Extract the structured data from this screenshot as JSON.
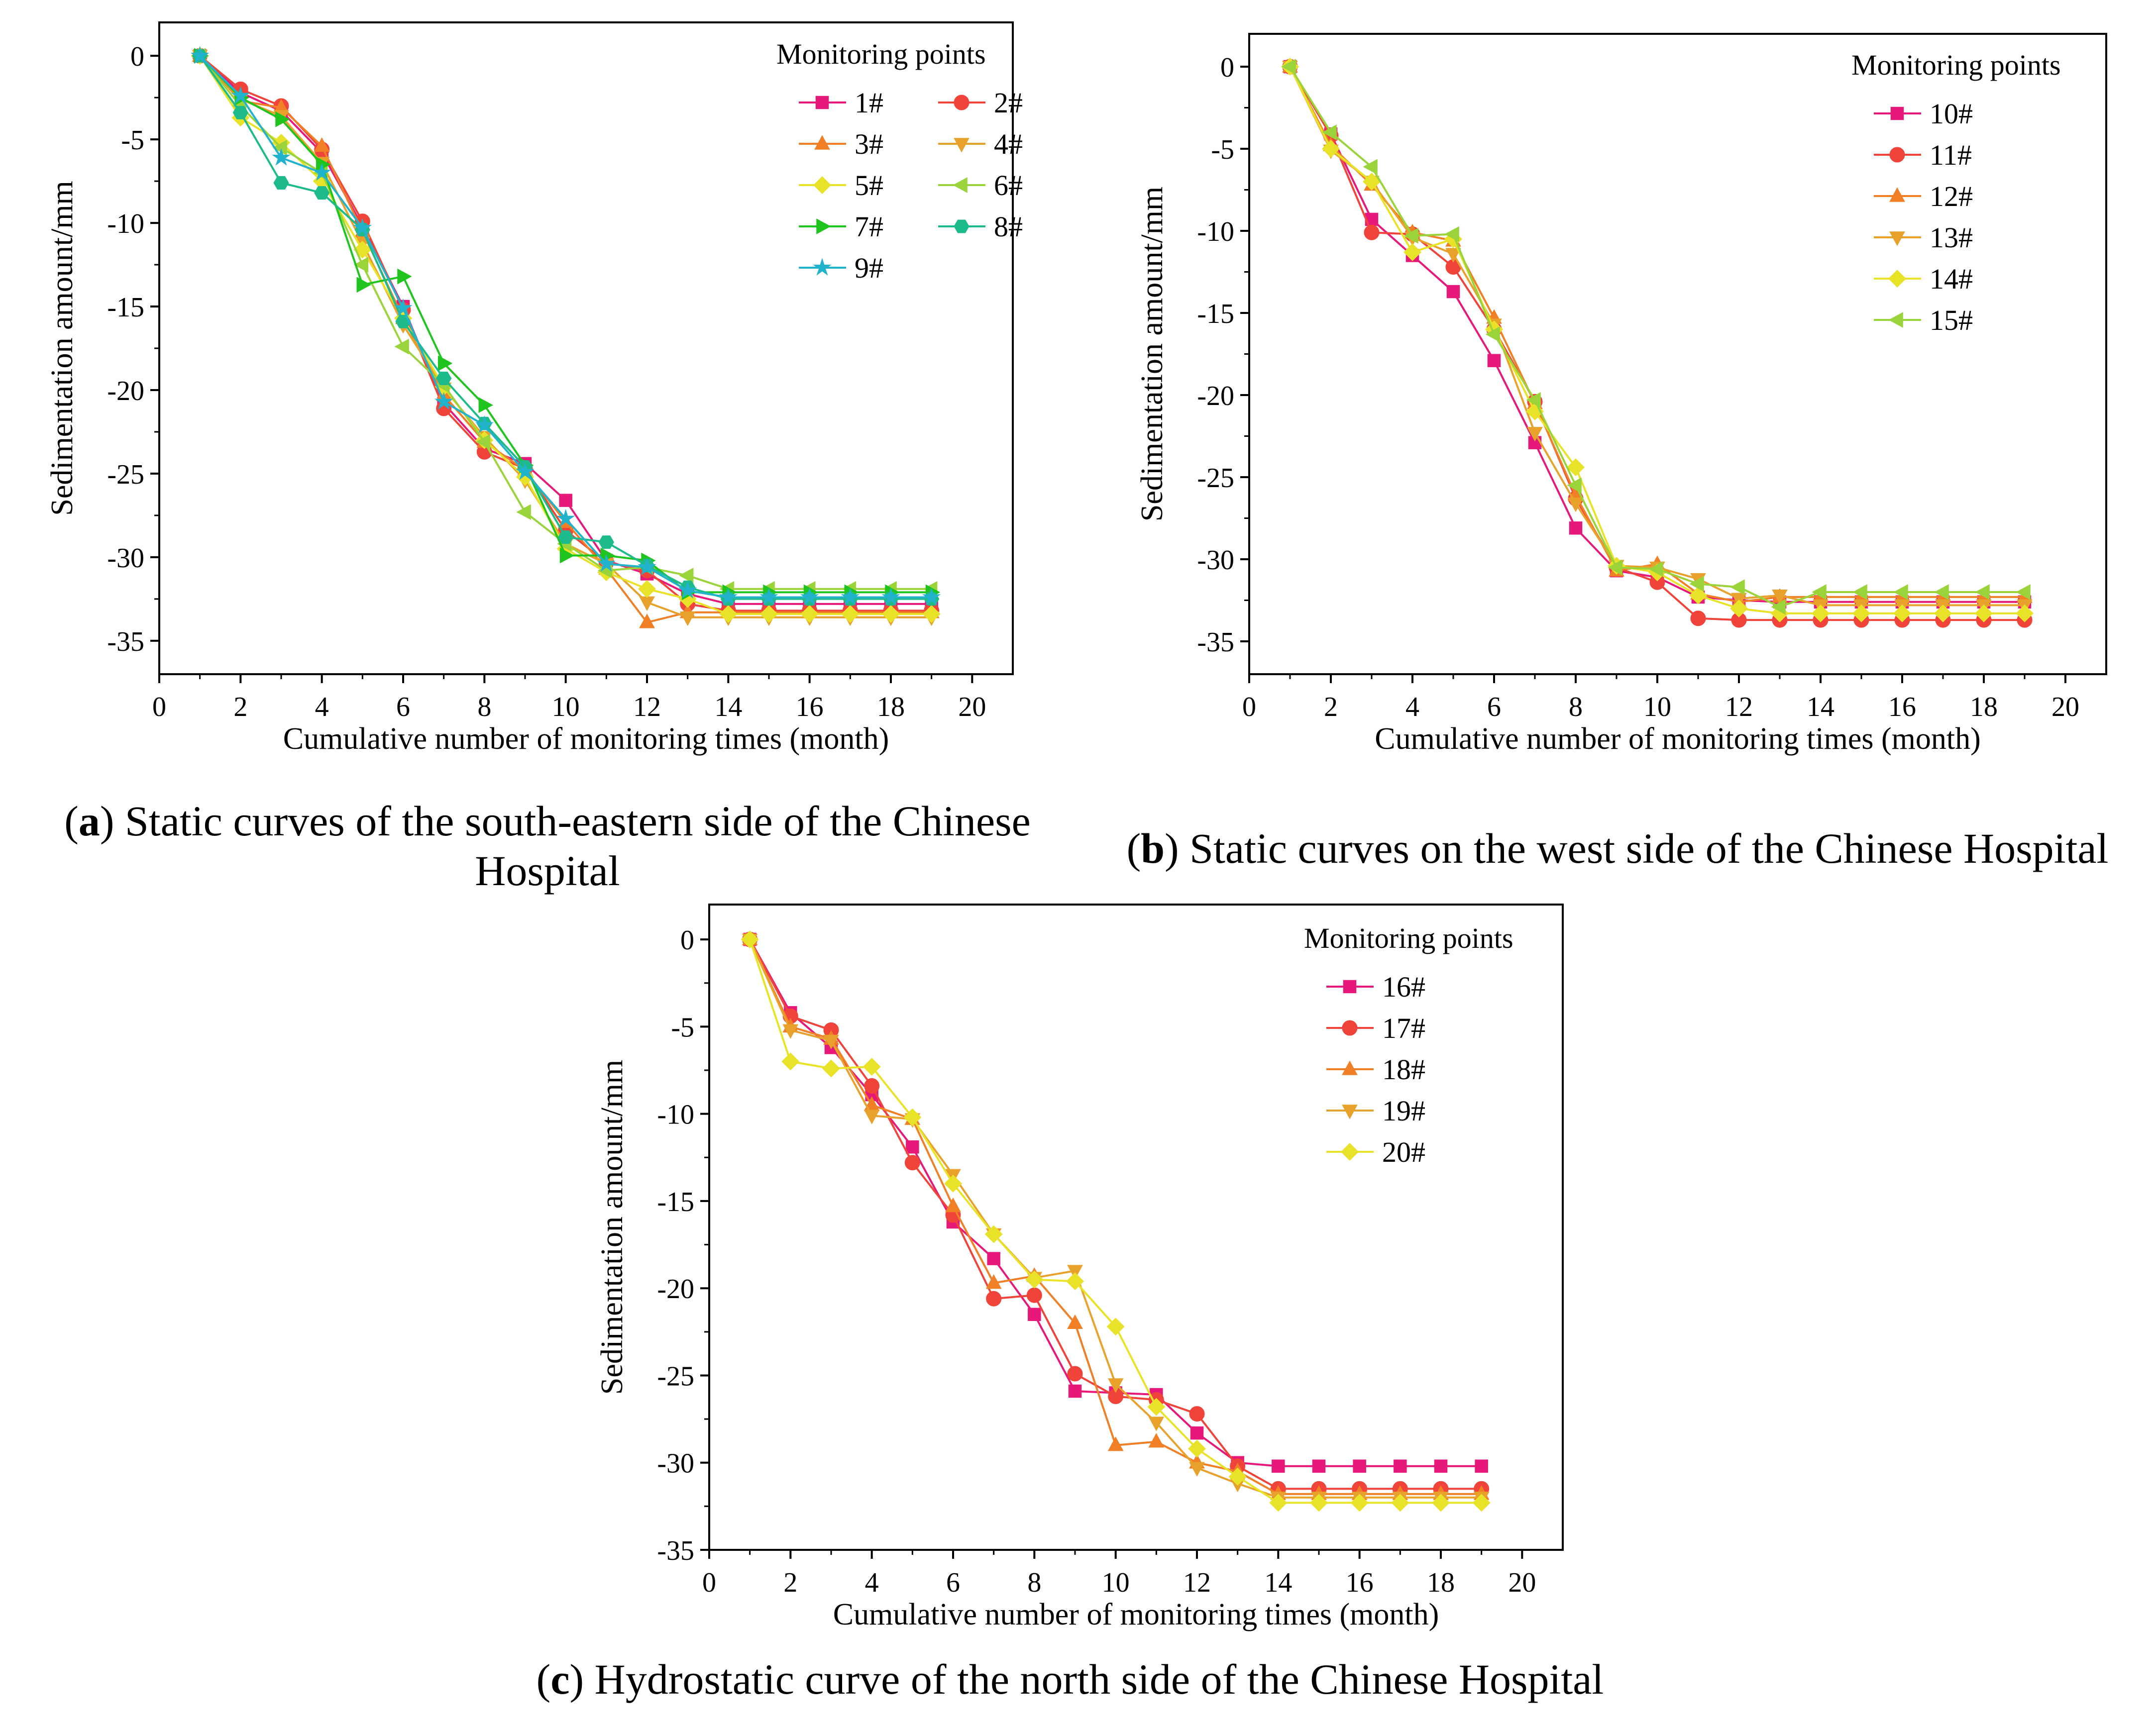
{
  "charts": [
    {
      "caption_letter": "a",
      "caption_text": ") Static curves of the south-eastern side of the Chinese Hospital",
      "legend_title": "Monitoring points"
    },
    {
      "caption_letter": "b",
      "caption_text": ") Static curves on the west side of the Chinese Hospital",
      "legend_title": "Monitoring points"
    },
    {
      "caption_letter": "c",
      "caption_text": ") Hydrostatic curve of the north side of the Chinese Hospital",
      "legend_title": "Monitoring points"
    }
  ],
  "chart_data": [
    {
      "type": "line",
      "xlabel": "Cumulative number of monitoring times (month)",
      "ylabel": "Sedimentation amount/mm",
      "xlim": [
        0,
        21
      ],
      "ylim": [
        -37,
        2
      ],
      "xticks": [
        0,
        2,
        4,
        6,
        8,
        10,
        12,
        14,
        16,
        18,
        20
      ],
      "yticks": [
        0,
        -5,
        -10,
        -15,
        -20,
        -25,
        -30,
        -35
      ],
      "legend_title": "Monitoring points",
      "legend_columns": 2,
      "x": [
        1,
        2,
        3,
        4,
        5,
        6,
        7,
        8,
        9,
        10,
        11,
        12,
        13,
        14,
        15,
        16,
        17,
        18,
        19
      ],
      "series": [
        {
          "name": "1#",
          "color": "#e6197a",
          "marker": "square",
          "values": [
            0,
            -2.2,
            -3.3,
            -5.8,
            -10.2,
            -15.0,
            -20.8,
            -23.5,
            -24.4,
            -26.6,
            -30.2,
            -31.0,
            -32.2,
            -32.8,
            -32.8,
            -32.8,
            -32.8,
            -32.8,
            -32.8
          ]
        },
        {
          "name": "2#",
          "color": "#f0433a",
          "marker": "circle",
          "values": [
            0,
            -2.0,
            -3.0,
            -5.6,
            -9.9,
            -15.2,
            -21.1,
            -23.7,
            -24.7,
            -28.4,
            -30.3,
            -30.8,
            -32.8,
            -33.2,
            -33.2,
            -33.2,
            -33.2,
            -33.2,
            -33.2
          ]
        },
        {
          "name": "3#",
          "color": "#f07f26",
          "marker": "triangle-up",
          "values": [
            0,
            -2.7,
            -3.1,
            -5.4,
            -10.5,
            -15.7,
            -20.3,
            -23.1,
            -24.8,
            -27.9,
            -30.7,
            -33.9,
            -33.3,
            -33.3,
            -33.3,
            -33.3,
            -33.3,
            -33.3,
            -33.3
          ]
        },
        {
          "name": "4#",
          "color": "#e8a22c",
          "marker": "triangle-down",
          "values": [
            0,
            -2.6,
            -3.6,
            -6.4,
            -11.2,
            -16.1,
            -19.9,
            -22.8,
            -25.4,
            -29.2,
            -30.4,
            -32.7,
            -33.6,
            -33.6,
            -33.6,
            -33.6,
            -33.6,
            -33.6,
            -33.6
          ]
        },
        {
          "name": "5#",
          "color": "#e8e328",
          "marker": "diamond",
          "values": [
            0,
            -3.7,
            -5.2,
            -7.5,
            -11.6,
            -15.7,
            -19.8,
            -23.0,
            -25.2,
            -29.5,
            -30.9,
            -31.9,
            -32.5,
            -33.4,
            -33.4,
            -33.4,
            -33.4,
            -33.4,
            -33.4
          ]
        },
        {
          "name": "6#",
          "color": "#9bd43a",
          "marker": "triangle-left",
          "values": [
            0,
            -3.0,
            -5.5,
            -7.0,
            -12.5,
            -17.4,
            -19.7,
            -23.1,
            -27.3,
            -29.2,
            -30.8,
            -30.6,
            -31.1,
            -31.9,
            -31.9,
            -31.9,
            -31.9,
            -31.9,
            -31.9
          ]
        },
        {
          "name": "7#",
          "color": "#1fc41f",
          "marker": "triangle-right",
          "values": [
            0,
            -2.5,
            -3.8,
            -6.5,
            -13.7,
            -13.2,
            -18.4,
            -20.9,
            -24.5,
            -29.9,
            -29.9,
            -30.2,
            -32.1,
            -32.1,
            -32.1,
            -32.1,
            -32.1,
            -32.1,
            -32.1
          ]
        },
        {
          "name": "8#",
          "color": "#1dba8c",
          "marker": "hexagon",
          "values": [
            0,
            -3.4,
            -7.6,
            -8.2,
            -10.4,
            -15.9,
            -19.3,
            -22.0,
            -24.6,
            -28.8,
            -29.1,
            -30.5,
            -31.8,
            -32.5,
            -32.5,
            -32.5,
            -32.5,
            -32.5,
            -32.5
          ]
        },
        {
          "name": "9#",
          "color": "#22b3cc",
          "marker": "star",
          "values": [
            0,
            -2.4,
            -6.1,
            -7.0,
            -10.3,
            -15.1,
            -20.7,
            -22.1,
            -24.9,
            -27.7,
            -30.4,
            -30.6,
            -32.0,
            -32.4,
            -32.4,
            -32.4,
            -32.4,
            -32.4,
            -32.4
          ]
        }
      ]
    },
    {
      "type": "line",
      "xlabel": "Cumulative number of monitoring times (month)",
      "ylabel": "Sedimentation amount/mm",
      "xlim": [
        0,
        21
      ],
      "ylim": [
        -37,
        2
      ],
      "xticks": [
        0,
        2,
        4,
        6,
        8,
        10,
        12,
        14,
        16,
        18,
        20
      ],
      "yticks": [
        0,
        -5,
        -10,
        -15,
        -20,
        -25,
        -30,
        -35
      ],
      "legend_title": "Monitoring points",
      "legend_columns": 1,
      "x": [
        1,
        2,
        3,
        4,
        5,
        6,
        7,
        8,
        9,
        10,
        11,
        12,
        13,
        14,
        15,
        16,
        17,
        18,
        19
      ],
      "series": [
        {
          "name": "10#",
          "color": "#e6197a",
          "marker": "square",
          "values": [
            0,
            -4.1,
            -9.3,
            -11.5,
            -13.7,
            -17.9,
            -22.9,
            -28.1,
            -30.7,
            -31.1,
            -32.3,
            -32.5,
            -32.6,
            -32.6,
            -32.6,
            -32.6,
            -32.6,
            -32.6,
            -32.6
          ]
        },
        {
          "name": "11#",
          "color": "#f0433a",
          "marker": "circle",
          "values": [
            0,
            -4.2,
            -10.1,
            -10.2,
            -12.2,
            -16.0,
            -20.4,
            -26.3,
            -30.5,
            -31.4,
            -33.6,
            -33.7,
            -33.7,
            -33.7,
            -33.7,
            -33.7,
            -33.7,
            -33.7,
            -33.7
          ]
        },
        {
          "name": "12#",
          "color": "#f07f26",
          "marker": "triangle-up",
          "values": [
            0,
            -4.8,
            -7.2,
            -10.1,
            -10.6,
            -15.3,
            -20.5,
            -26.1,
            -30.7,
            -30.3,
            -32.1,
            -32.6,
            -32.3,
            -32.3,
            -32.3,
            -32.3,
            -32.3,
            -32.3,
            -32.3
          ]
        },
        {
          "name": "13#",
          "color": "#e8a22c",
          "marker": "triangle-down",
          "values": [
            0,
            -5.1,
            -7.0,
            -10.4,
            -11.4,
            -15.7,
            -22.3,
            -26.6,
            -30.4,
            -30.5,
            -31.2,
            -32.4,
            -32.2,
            -32.8,
            -32.8,
            -32.8,
            -32.8,
            -32.8,
            -32.8
          ]
        },
        {
          "name": "14#",
          "color": "#e8e328",
          "marker": "diamond",
          "values": [
            0,
            -5.0,
            -7.0,
            -11.3,
            -10.5,
            -16.0,
            -21.0,
            -24.4,
            -30.4,
            -30.8,
            -32.2,
            -33.0,
            -33.3,
            -33.3,
            -33.3,
            -33.3,
            -33.3,
            -33.3,
            -33.3
          ]
        },
        {
          "name": "15#",
          "color": "#9bd43a",
          "marker": "triangle-left",
          "values": [
            0,
            -4.0,
            -6.1,
            -10.3,
            -10.2,
            -16.3,
            -20.3,
            -25.5,
            -30.5,
            -30.6,
            -31.5,
            -31.7,
            -32.9,
            -32.0,
            -32.0,
            -32.0,
            -32.0,
            -32.0,
            -32.0
          ]
        }
      ]
    },
    {
      "type": "line",
      "xlabel": "Cumulative number of monitoring times (month)",
      "ylabel": "Sedimentation amount/mm",
      "xlim": [
        0,
        21
      ],
      "ylim": [
        -35,
        2
      ],
      "xticks": [
        0,
        2,
        4,
        6,
        8,
        10,
        12,
        14,
        16,
        18,
        20
      ],
      "yticks": [
        0,
        -5,
        -10,
        -15,
        -20,
        -25,
        -30,
        -35
      ],
      "legend_title": "Monitoring points",
      "legend_columns": 1,
      "x": [
        1,
        2,
        3,
        4,
        5,
        6,
        7,
        8,
        9,
        10,
        11,
        12,
        13,
        14,
        15,
        16,
        17,
        18,
        19
      ],
      "series": [
        {
          "name": "16#",
          "color": "#e6197a",
          "marker": "square",
          "values": [
            0,
            -4.2,
            -6.2,
            -8.9,
            -11.9,
            -16.2,
            -18.3,
            -21.5,
            -25.9,
            -26.0,
            -26.1,
            -28.3,
            -30.0,
            -30.2,
            -30.2,
            -30.2,
            -30.2,
            -30.2,
            -30.2
          ]
        },
        {
          "name": "17#",
          "color": "#f0433a",
          "marker": "circle",
          "values": [
            0,
            -4.4,
            -5.2,
            -8.4,
            -12.8,
            -15.8,
            -20.6,
            -20.4,
            -24.9,
            -26.2,
            -26.4,
            -27.2,
            -30.2,
            -31.5,
            -31.5,
            -31.5,
            -31.5,
            -31.5,
            -31.5
          ]
        },
        {
          "name": "18#",
          "color": "#f07f26",
          "marker": "triangle-up",
          "values": [
            0,
            -5.0,
            -5.7,
            -9.5,
            -10.3,
            -15.3,
            -19.7,
            -19.3,
            -22.0,
            -29.0,
            -28.8,
            -30.0,
            -30.5,
            -31.8,
            -31.8,
            -31.8,
            -31.8,
            -31.8,
            -31.8
          ]
        },
        {
          "name": "19#",
          "color": "#e8a22c",
          "marker": "triangle-down",
          "values": [
            0,
            -5.2,
            -5.8,
            -10.1,
            -10.3,
            -13.5,
            -16.9,
            -19.4,
            -19.0,
            -25.5,
            -27.7,
            -30.3,
            -31.2,
            -32.0,
            -32.0,
            -32.0,
            -32.0,
            -32.0,
            -32.0
          ]
        },
        {
          "name": "20#",
          "color": "#e8e328",
          "marker": "diamond",
          "values": [
            0,
            -7.0,
            -7.4,
            -7.3,
            -10.2,
            -14.0,
            -16.9,
            -19.5,
            -19.6,
            -22.2,
            -26.8,
            -29.2,
            -30.8,
            -32.3,
            -32.3,
            -32.3,
            -32.3,
            -32.3,
            -32.3
          ]
        }
      ]
    }
  ]
}
